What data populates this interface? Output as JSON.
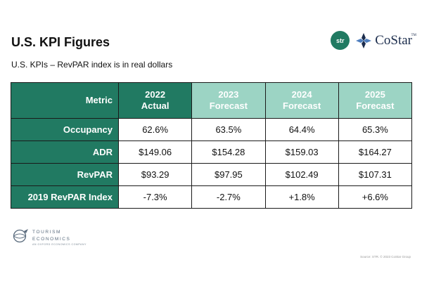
{
  "title": "U.S. KPI Figures",
  "subtitle": "U.S. KPIs – RevPAR index is in real dollars",
  "logos": {
    "str": "str",
    "costar": "CoStar",
    "costar_tm": "TM",
    "tourism_economics": [
      "TOURISM",
      "ECONOMICS"
    ],
    "tourism_tagline": "AN OXFORD ECONOMICS COMPANY"
  },
  "table": {
    "metric_header": "Metric",
    "columns": [
      {
        "year": "2022",
        "type": "Actual"
      },
      {
        "year": "2023",
        "type": "Forecast"
      },
      {
        "year": "2024",
        "type": "Forecast"
      },
      {
        "year": "2025",
        "type": "Forecast"
      }
    ],
    "rows": [
      {
        "metric": "Occupancy",
        "values": [
          "62.6%",
          "63.5%",
          "64.4%",
          "65.3%"
        ]
      },
      {
        "metric": "ADR",
        "values": [
          "$149.06",
          "$154.28",
          "$159.03",
          "$164.27"
        ]
      },
      {
        "metric": "RevPAR",
        "values": [
          "$93.29",
          "$97.95",
          "$102.49",
          "$107.31"
        ]
      },
      {
        "metric": "2019 RevPAR Index",
        "values": [
          "-7.3%",
          "-2.7%",
          "+1.8%",
          "+6.6%"
        ]
      }
    ]
  },
  "source": "Source: STR. © 2023 CoStar Group",
  "colors": {
    "accent_dark": "#217a62",
    "accent_light": "#9cd4c4",
    "costar_navy": "#1c2d4d"
  }
}
